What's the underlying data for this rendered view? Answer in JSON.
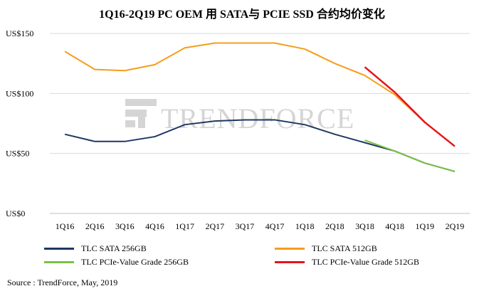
{
  "chart_data": {
    "type": "line",
    "title": "1Q16-2Q19 PC OEM 用 SATA与 PCIE SSD 合约均价变化",
    "categories": [
      "1Q16",
      "2Q16",
      "3Q16",
      "4Q16",
      "1Q17",
      "2Q17",
      "3Q17",
      "4Q17",
      "1Q18",
      "2Q18",
      "3Q18",
      "4Q18",
      "1Q19",
      "2Q19"
    ],
    "yticks": [
      "US$0",
      "US$50",
      "US$100",
      "US$150"
    ],
    "ylim": [
      0,
      150
    ],
    "grid": "horizontal",
    "legend_position": "bottom",
    "series": [
      {
        "name": "TLC SATA 256GB",
        "color": "#1f3864",
        "values": [
          66,
          60,
          60,
          64,
          74,
          77,
          78,
          78,
          74,
          66,
          59,
          52,
          42,
          35
        ]
      },
      {
        "name": "TLC SATA 512GB",
        "color": "#f59d1c",
        "values": [
          135,
          120,
          119,
          124,
          138,
          142,
          142,
          142,
          137,
          125,
          115,
          99,
          76,
          56
        ]
      },
      {
        "name": "TLC PCIe-Value Grade 256GB",
        "color": "#7ac143",
        "values": [
          null,
          null,
          null,
          null,
          null,
          null,
          null,
          null,
          null,
          null,
          61,
          52,
          42,
          35
        ]
      },
      {
        "name": "TLC PCIe-Value Grade 512GB",
        "color": "#e8141b",
        "values": [
          null,
          null,
          null,
          null,
          null,
          null,
          null,
          null,
          null,
          null,
          122,
          101,
          76,
          56
        ]
      }
    ],
    "watermark": "TRENDFORCE"
  },
  "source": "Source : TrendForce, May, 2019"
}
